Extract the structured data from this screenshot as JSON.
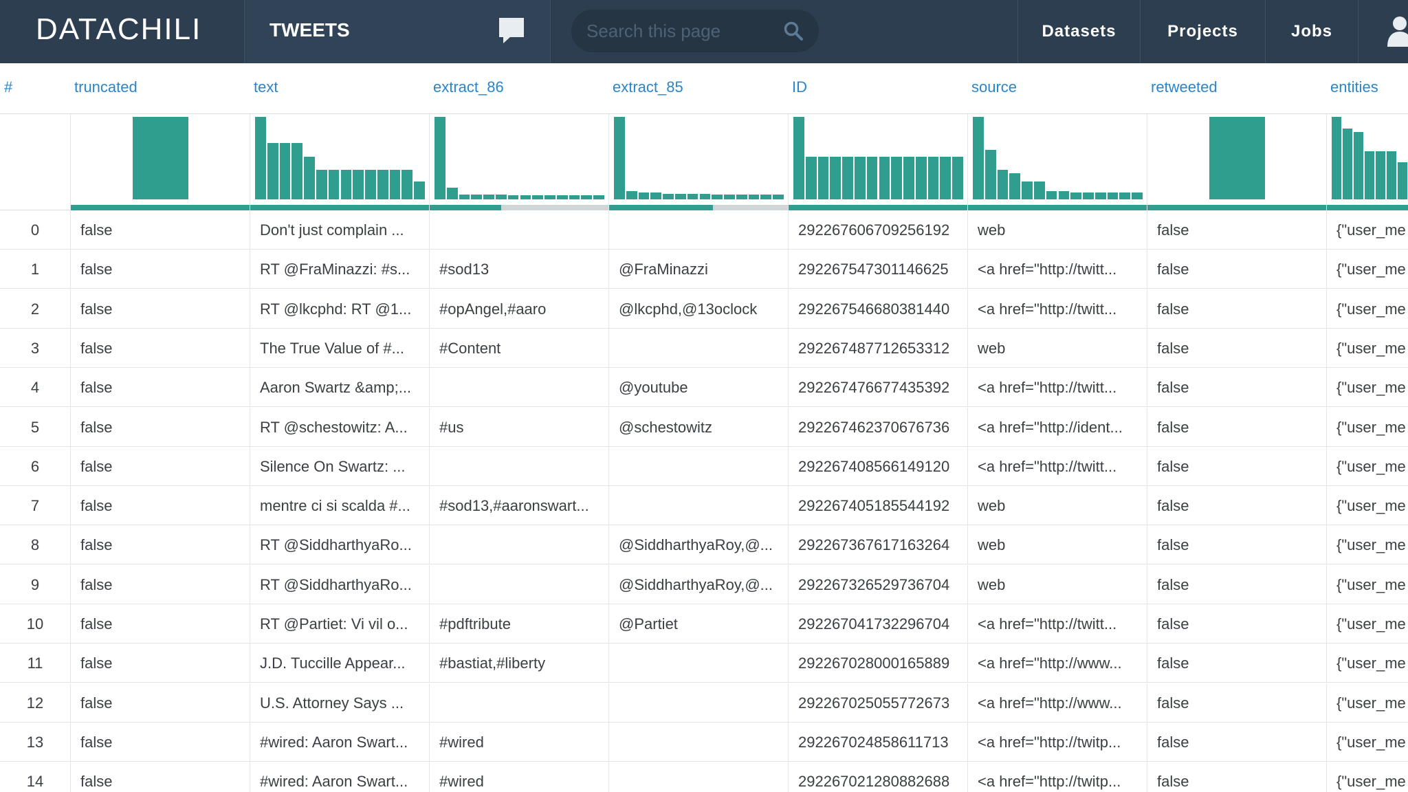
{
  "app": {
    "logo": "DATACHILI",
    "tab_title": "TWEETS"
  },
  "search": {
    "placeholder": "Search this page"
  },
  "nav": {
    "datasets": "Datasets",
    "projects": "Projects",
    "jobs": "Jobs"
  },
  "icons": {
    "chat": "chat-bubble-icon",
    "search": "search-icon",
    "user": "user-icon"
  },
  "colors": {
    "topbar": "#2d3e50",
    "accent": "#2a86c9",
    "histogram": "#2f9e8f"
  },
  "columns": [
    "#",
    "truncated",
    "text",
    "extract_86",
    "extract_85",
    "ID",
    "source",
    "retweeted",
    "entities"
  ],
  "histograms": {
    "truncated": {
      "bars": [
        0,
        1,
        0
      ],
      "valid": 1.0
    },
    "text": {
      "bars": [
        1.0,
        0.68,
        0.68,
        0.68,
        0.52,
        0.36,
        0.36,
        0.36,
        0.36,
        0.36,
        0.36,
        0.36,
        0.36,
        0.22
      ],
      "valid": 1.0
    },
    "extract_86": {
      "bars": [
        1.0,
        0.14,
        0.06,
        0.06,
        0.06,
        0.06,
        0.05,
        0.05,
        0.05,
        0.05,
        0.05,
        0.05,
        0.05,
        0.05
      ],
      "valid": 0.4
    },
    "extract_85": {
      "bars": [
        1.0,
        0.1,
        0.08,
        0.08,
        0.07,
        0.07,
        0.07,
        0.07,
        0.06,
        0.06,
        0.06,
        0.06,
        0.06,
        0.06
      ],
      "valid": 0.58
    },
    "ID": {
      "bars": [
        1.0,
        0.52,
        0.52,
        0.52,
        0.52,
        0.52,
        0.52,
        0.52,
        0.52,
        0.52,
        0.52,
        0.52,
        0.52,
        0.52
      ],
      "valid": 1.0
    },
    "source": {
      "bars": [
        1.0,
        0.6,
        0.36,
        0.32,
        0.22,
        0.22,
        0.1,
        0.1,
        0.08,
        0.08,
        0.08,
        0.08,
        0.08,
        0.08
      ],
      "valid": 1.0
    },
    "retweeted": {
      "bars": [
        0,
        1,
        0
      ],
      "valid": 1.0
    },
    "entities": {
      "bars": [
        1.0,
        0.86,
        0.82,
        0.58,
        0.58,
        0.58,
        0.45,
        0.45
      ],
      "valid": 1.0
    }
  },
  "rows": [
    [
      "0",
      "false",
      "Don't just complain ...",
      "",
      "",
      "292267606709256192",
      "web",
      "false",
      "{\"user_me"
    ],
    [
      "1",
      "false",
      "RT @FraMinazzi: #s...",
      "#sod13",
      "@FraMinazzi",
      "292267547301146625",
      "<a href=\"http://twitt...",
      "false",
      "{\"user_me"
    ],
    [
      "2",
      "false",
      "RT @lkcphd: RT @1...",
      "#opAngel,#aaro",
      "@lkcphd,@13oclock",
      "292267546680381440",
      "<a href=\"http://twitt...",
      "false",
      "{\"user_me"
    ],
    [
      "3",
      "false",
      "The True Value of #...",
      "#Content",
      "",
      "292267487712653312",
      "web",
      "false",
      "{\"user_me"
    ],
    [
      "4",
      "false",
      "Aaron Swartz &amp;...",
      "",
      "@youtube",
      "292267476677435392",
      "<a href=\"http://twitt...",
      "false",
      "{\"user_me"
    ],
    [
      "5",
      "false",
      "RT @schestowitz: A...",
      "#us",
      "@schestowitz",
      "292267462370676736",
      "<a href=\"http://ident...",
      "false",
      "{\"user_me"
    ],
    [
      "6",
      "false",
      "Silence On Swartz: ...",
      "",
      "",
      "292267408566149120",
      "<a href=\"http://twitt...",
      "false",
      "{\"user_me"
    ],
    [
      "7",
      "false",
      "mentre ci si scalda #...",
      "#sod13,#aaronswart...",
      "",
      "292267405185544192",
      "web",
      "false",
      "{\"user_me"
    ],
    [
      "8",
      "false",
      "RT @SiddharthyaRo...",
      "",
      "@SiddharthyaRoy,@...",
      "292267367617163264",
      "web",
      "false",
      "{\"user_me"
    ],
    [
      "9",
      "false",
      "RT @SiddharthyaRo...",
      "",
      "@SiddharthyaRoy,@...",
      "292267326529736704",
      "web",
      "false",
      "{\"user_me"
    ],
    [
      "10",
      "false",
      "RT @Partiet: Vi vil o...",
      "#pdftribute",
      "@Partiet",
      "292267041732296704",
      "<a href=\"http://twitt...",
      "false",
      "{\"user_me"
    ],
    [
      "11",
      "false",
      "J.D. Tuccille Appear...",
      "#bastiat,#liberty",
      "",
      "292267028000165889",
      "<a href=\"http://www...",
      "false",
      "{\"user_me"
    ],
    [
      "12",
      "false",
      "U.S. Attorney Says ...",
      "",
      "",
      "292267025055772673",
      "<a href=\"http://www...",
      "false",
      "{\"user_me"
    ],
    [
      "13",
      "false",
      "#wired: Aaron Swart...",
      "#wired",
      "",
      "292267024858611713",
      "<a href=\"http://twitp...",
      "false",
      "{\"user_me"
    ],
    [
      "14",
      "false",
      "#wired: Aaron Swart...",
      "#wired",
      "",
      "292267021280882688",
      "<a href=\"http://twitp...",
      "false",
      "{\"user_me"
    ]
  ]
}
